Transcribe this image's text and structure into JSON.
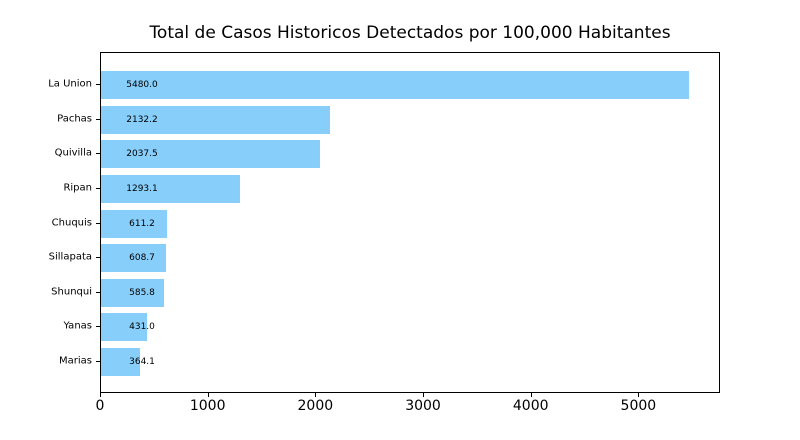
{
  "figure": {
    "background": "#ffffff"
  },
  "chart_data": {
    "type": "bar",
    "orientation": "horizontal",
    "title": "Total de Casos Historicos Detectados por 100,000 Habitantes",
    "categories": [
      "La Union",
      "Pachas",
      "Quivilla",
      "Ripan",
      "Chuquis",
      "Sillapata",
      "Shunqui",
      "Yanas",
      "Marias"
    ],
    "values": [
      5480.0,
      2132.2,
      2037.5,
      1293.1,
      611.2,
      608.7,
      585.8,
      431.0,
      364.1
    ],
    "value_labels": [
      "5480.0",
      "2132.2",
      "2037.5",
      "1293.1",
      "611.2",
      "608.7",
      "585.8",
      "431.0",
      "364.1"
    ],
    "xlabel": "",
    "ylabel": "",
    "xlim": [
      0,
      5758
    ],
    "x_ticks": [
      0,
      1000,
      2000,
      3000,
      4000,
      5000
    ],
    "x_tick_labels": [
      "0",
      "1000",
      "2000",
      "3000",
      "4000",
      "5000"
    ],
    "bar_color": "#87CEFA",
    "text_color": "#000000",
    "grid": false,
    "legend": null
  }
}
